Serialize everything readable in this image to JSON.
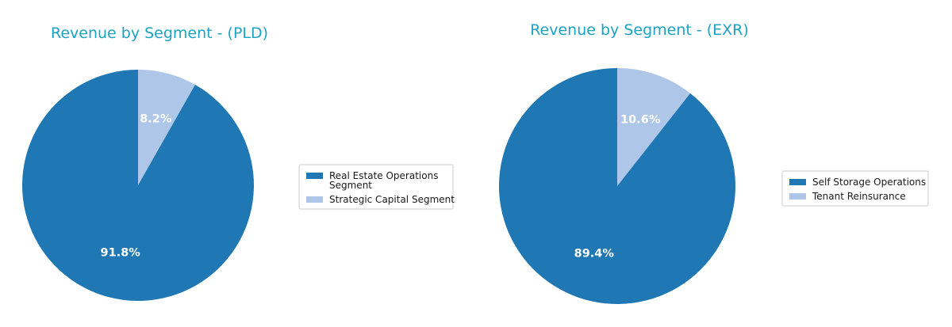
{
  "colors": {
    "title": "#1ba3c6",
    "primary_slice": "#1f77b4",
    "secondary_slice": "#aec7e8",
    "slice_label": "#ffffff",
    "legend_border": "#cccccc"
  },
  "chart_data": [
    {
      "type": "pie",
      "title": "Revenue by Segment - (PLD)",
      "start_angle_deg": 90,
      "direction": "clockwise",
      "legend_position": "right",
      "slices": [
        {
          "name": "Strategic Capital Segment",
          "value": 8.2,
          "label": "8.2%",
          "color": "#aec7e8"
        },
        {
          "name": "Real Estate Operations Segment",
          "value": 91.8,
          "label": "91.8%",
          "color": "#1f77b4"
        }
      ],
      "legend": [
        {
          "label_lines": [
            "Real Estate Operations",
            "Segment"
          ],
          "color": "#1f77b4"
        },
        {
          "label_lines": [
            "Strategic Capital Segment"
          ],
          "color": "#aec7e8"
        }
      ]
    },
    {
      "type": "pie",
      "title": "Revenue by Segment - (EXR)",
      "start_angle_deg": 90,
      "direction": "clockwise",
      "legend_position": "right",
      "slices": [
        {
          "name": "Tenant Reinsurance",
          "value": 10.6,
          "label": "10.6%",
          "color": "#aec7e8"
        },
        {
          "name": "Self Storage Operations",
          "value": 89.4,
          "label": "89.4%",
          "color": "#1f77b4"
        }
      ],
      "legend": [
        {
          "label_lines": [
            "Self Storage Operations"
          ],
          "color": "#1f77b4"
        },
        {
          "label_lines": [
            "Tenant Reinsurance"
          ],
          "color": "#aec7e8"
        }
      ]
    }
  ]
}
